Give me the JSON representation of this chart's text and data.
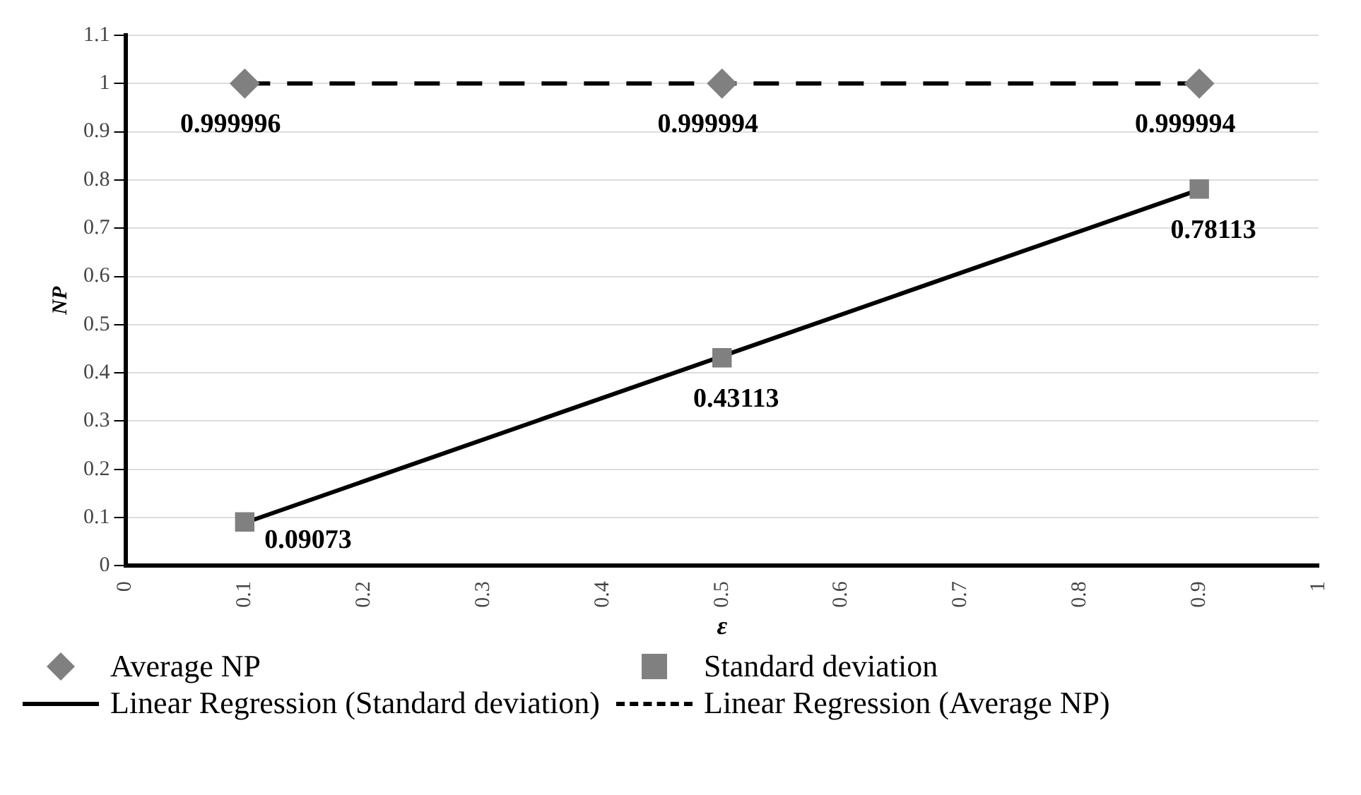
{
  "chart_data": {
    "type": "scatter",
    "xlabel": "ε",
    "ylabel": "NP",
    "xlim": [
      0,
      1
    ],
    "xticks": [
      0,
      0.1,
      0.2,
      0.3,
      0.4,
      0.5,
      0.6,
      0.7,
      0.8,
      0.9,
      1
    ],
    "ylim": [
      0,
      1.1
    ],
    "yticks": [
      0,
      0.1,
      0.2,
      0.3,
      0.4,
      0.5,
      0.6,
      0.7,
      0.8,
      0.9,
      1,
      1.1
    ],
    "grid": "y",
    "legend": "bottom",
    "series": [
      {
        "name": "Average NP",
        "marker": "diamond",
        "color": "#808080",
        "x": [
          0.1,
          0.5,
          0.9
        ],
        "values": [
          0.999996,
          0.999994,
          0.999994
        ],
        "value_labels": [
          "0.999996",
          "0.999994",
          "0.999994"
        ]
      },
      {
        "name": "Standard deviation",
        "marker": "square",
        "color": "#808080",
        "x": [
          0.1,
          0.5,
          0.9
        ],
        "values": [
          0.09073,
          0.43113,
          0.78113
        ],
        "value_labels": [
          "0.09073",
          "0.43113",
          "0.78113"
        ]
      },
      {
        "name": "Linear Regression (Standard deviation)",
        "type": "line",
        "marker": "none",
        "line_style": "solid",
        "color": "#000000",
        "x": [
          0.1,
          0.9
        ],
        "values": [
          0.089,
          0.78
        ]
      },
      {
        "name": "Linear Regression (Average NP)",
        "type": "line",
        "marker": "none",
        "line_style": "dashed",
        "color": "#000000",
        "x": [
          0.1,
          0.9
        ],
        "values": [
          1,
          1
        ]
      }
    ]
  }
}
